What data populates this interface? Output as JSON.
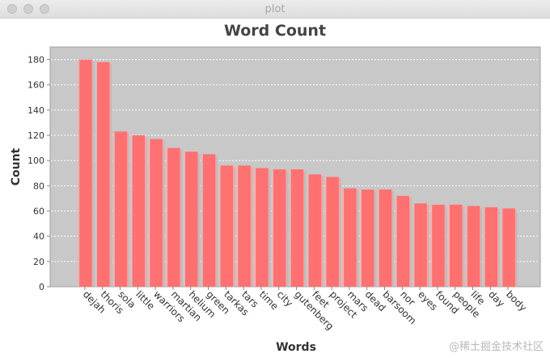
{
  "window": {
    "title": "plot"
  },
  "watermark": "@稀土掘金技术社区",
  "colors": {
    "bar": "#ff7070",
    "bar_highlight": "#ffb0b0",
    "bar_shadow": "#bdbdbd",
    "plot_background": "#c8c8c8",
    "gridline": "#ffffff",
    "border": "#a0a0a0"
  },
  "chart_data": {
    "type": "bar",
    "title": "Word Count",
    "xlabel": "Words",
    "ylabel": "Count",
    "ylim": [
      0,
      190
    ],
    "yticks": [
      0,
      20,
      40,
      60,
      80,
      100,
      120,
      140,
      160,
      180
    ],
    "grid": true,
    "legend": "none",
    "categories": [
      "dejah",
      "thoris",
      "sola",
      "little",
      "warriors",
      "martian",
      "helium",
      "green",
      "tarkas",
      "tars",
      "time",
      "city",
      "gutenberg",
      "feet",
      "project",
      "mars",
      "dead",
      "barsoom",
      "nor",
      "eyes",
      "found",
      "people",
      "life",
      "day",
      "body"
    ],
    "values": [
      180,
      178,
      123,
      120,
      117,
      110,
      107,
      105,
      96,
      96,
      94,
      93,
      93,
      89,
      87,
      78,
      77,
      77,
      72,
      66,
      65,
      65,
      64,
      63,
      62
    ]
  }
}
